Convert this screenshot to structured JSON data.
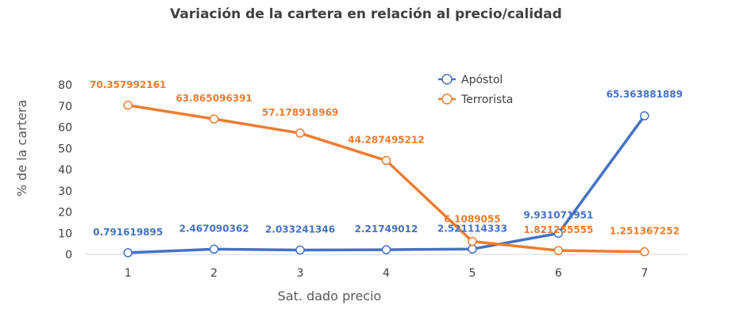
{
  "chart_data": {
    "type": "line",
    "title": "Variación de la cartera en relación al precio/calidad",
    "xlabel": "Sat. dado precio",
    "ylabel": "% de la cartera",
    "categories": [
      "1",
      "2",
      "3",
      "4",
      "5",
      "6",
      "7"
    ],
    "ylim": [
      0,
      80
    ],
    "yticks": [
      0,
      10,
      20,
      30,
      40,
      50,
      60,
      70,
      80
    ],
    "grid": false,
    "legend_position": "top-right",
    "series": [
      {
        "name": "Apóstol",
        "color": "#4472C4",
        "values": [
          0.791619895,
          2.467090362,
          2.033241346,
          2.21749012,
          2.521114333,
          9.931071951,
          65.363881889
        ],
        "labels": [
          "0.791619895",
          "2.467090362",
          "2.033241346",
          "2.21749012",
          "2.521114333",
          "9.931071951",
          "65.363881889"
        ]
      },
      {
        "name": "Terrorista",
        "color": "#ED7D31",
        "values": [
          70.357992161,
          63.865096391,
          57.178918969,
          44.287495212,
          6.1089055,
          1.821255555,
          1.251367252
        ],
        "labels": [
          "70.357992161",
          "63.865096391",
          "57.178918969",
          "44.287495212",
          "6.1089055",
          "1.821255555",
          "1.251367252"
        ]
      }
    ]
  }
}
